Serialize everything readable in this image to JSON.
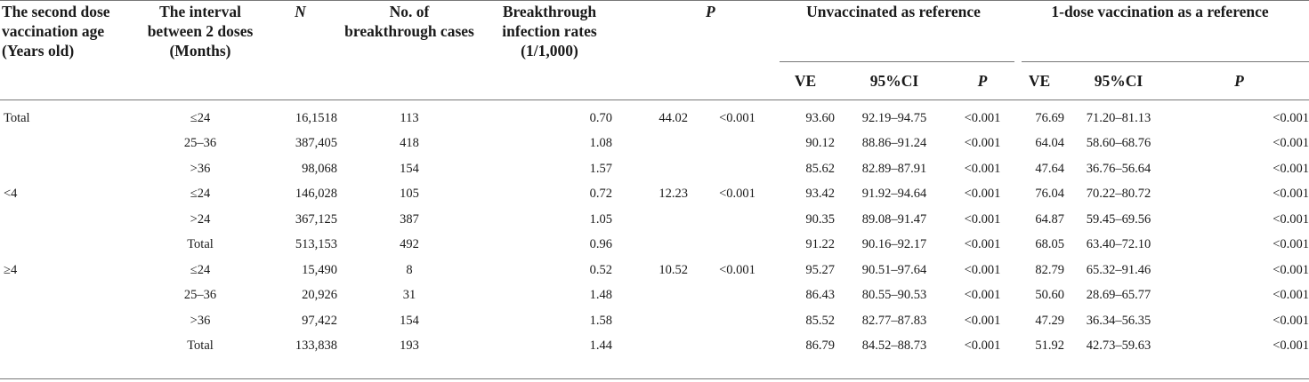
{
  "headers": {
    "age": "The second dose vaccination age (Years old)",
    "interval": "The interval between 2 doses (Months)",
    "n": "N",
    "cases": "No. of breakthrough cases",
    "rates": "Breakthrough infection rates (1/1,000)",
    "chi": "",
    "p": "P",
    "unvax_group": "Unvaccinated as reference",
    "onedose_group": "1-dose vaccination as a reference",
    "ve": "VE",
    "ci": "95%CI",
    "p_sub": "P"
  },
  "rows": [
    {
      "age": "Total",
      "interval": "≤24",
      "n": "16,1518",
      "cases": "113",
      "rate": "0.70",
      "chi": "44.02",
      "p": "<0.001",
      "ve1": "93.60",
      "ci1": "92.19–94.75",
      "p1": "<0.001",
      "ve2": "76.69",
      "ci2": "71.20–81.13",
      "p2": "<0.001"
    },
    {
      "age": "",
      "interval": "25–36",
      "n": "387,405",
      "cases": "418",
      "rate": "1.08",
      "chi": "",
      "p": "",
      "ve1": "90.12",
      "ci1": "88.86–91.24",
      "p1": "<0.001",
      "ve2": "64.04",
      "ci2": "58.60–68.76",
      "p2": "<0.001"
    },
    {
      "age": "",
      "interval": ">36",
      "n": "98,068",
      "cases": "154",
      "rate": "1.57",
      "chi": "",
      "p": "",
      "ve1": "85.62",
      "ci1": "82.89–87.91",
      "p1": "<0.001",
      "ve2": "47.64",
      "ci2": "36.76–56.64",
      "p2": "<0.001"
    },
    {
      "age": "<4",
      "interval": "≤24",
      "n": "146,028",
      "cases": "105",
      "rate": "0.72",
      "chi": "12.23",
      "p": "<0.001",
      "ve1": "93.42",
      "ci1": "91.92–94.64",
      "p1": "<0.001",
      "ve2": "76.04",
      "ci2": "70.22–80.72",
      "p2": "<0.001"
    },
    {
      "age": "",
      "interval": ">24",
      "n": "367,125",
      "cases": "387",
      "rate": "1.05",
      "chi": "",
      "p": "",
      "ve1": "90.35",
      "ci1": "89.08–91.47",
      "p1": "<0.001",
      "ve2": "64.87",
      "ci2": "59.45–69.56",
      "p2": "<0.001"
    },
    {
      "age": "",
      "interval": "Total",
      "n": "513,153",
      "cases": "492",
      "rate": "0.96",
      "chi": "",
      "p": "",
      "ve1": "91.22",
      "ci1": "90.16–92.17",
      "p1": "<0.001",
      "ve2": "68.05",
      "ci2": "63.40–72.10",
      "p2": "<0.001"
    },
    {
      "age": "≥4",
      "interval": "≤24",
      "n": "15,490",
      "cases": "8",
      "rate": "0.52",
      "chi": "10.52",
      "p": "<0.001",
      "ve1": "95.27",
      "ci1": "90.51–97.64",
      "p1": "<0.001",
      "ve2": "82.79",
      "ci2": "65.32–91.46",
      "p2": "<0.001"
    },
    {
      "age": "",
      "interval": "25–36",
      "n": "20,926",
      "cases": "31",
      "rate": "1.48",
      "chi": "",
      "p": "",
      "ve1": "86.43",
      "ci1": "80.55–90.53",
      "p1": "<0.001",
      "ve2": "50.60",
      "ci2": "28.69–65.77",
      "p2": "<0.001"
    },
    {
      "age": "",
      "interval": ">36",
      "n": "97,422",
      "cases": "154",
      "rate": "1.58",
      "chi": "",
      "p": "",
      "ve1": "85.52",
      "ci1": "82.77–87.83",
      "p1": "<0.001",
      "ve2": "47.29",
      "ci2": "36.34–56.35",
      "p2": "<0.001"
    },
    {
      "age": "",
      "interval": "Total",
      "n": "133,838",
      "cases": "193",
      "rate": "1.44",
      "chi": "",
      "p": "",
      "ve1": "86.79",
      "ci1": "84.52–88.73",
      "p1": "<0.001",
      "ve2": "51.92",
      "ci2": "42.73–59.63",
      "p2": "<0.001"
    }
  ]
}
